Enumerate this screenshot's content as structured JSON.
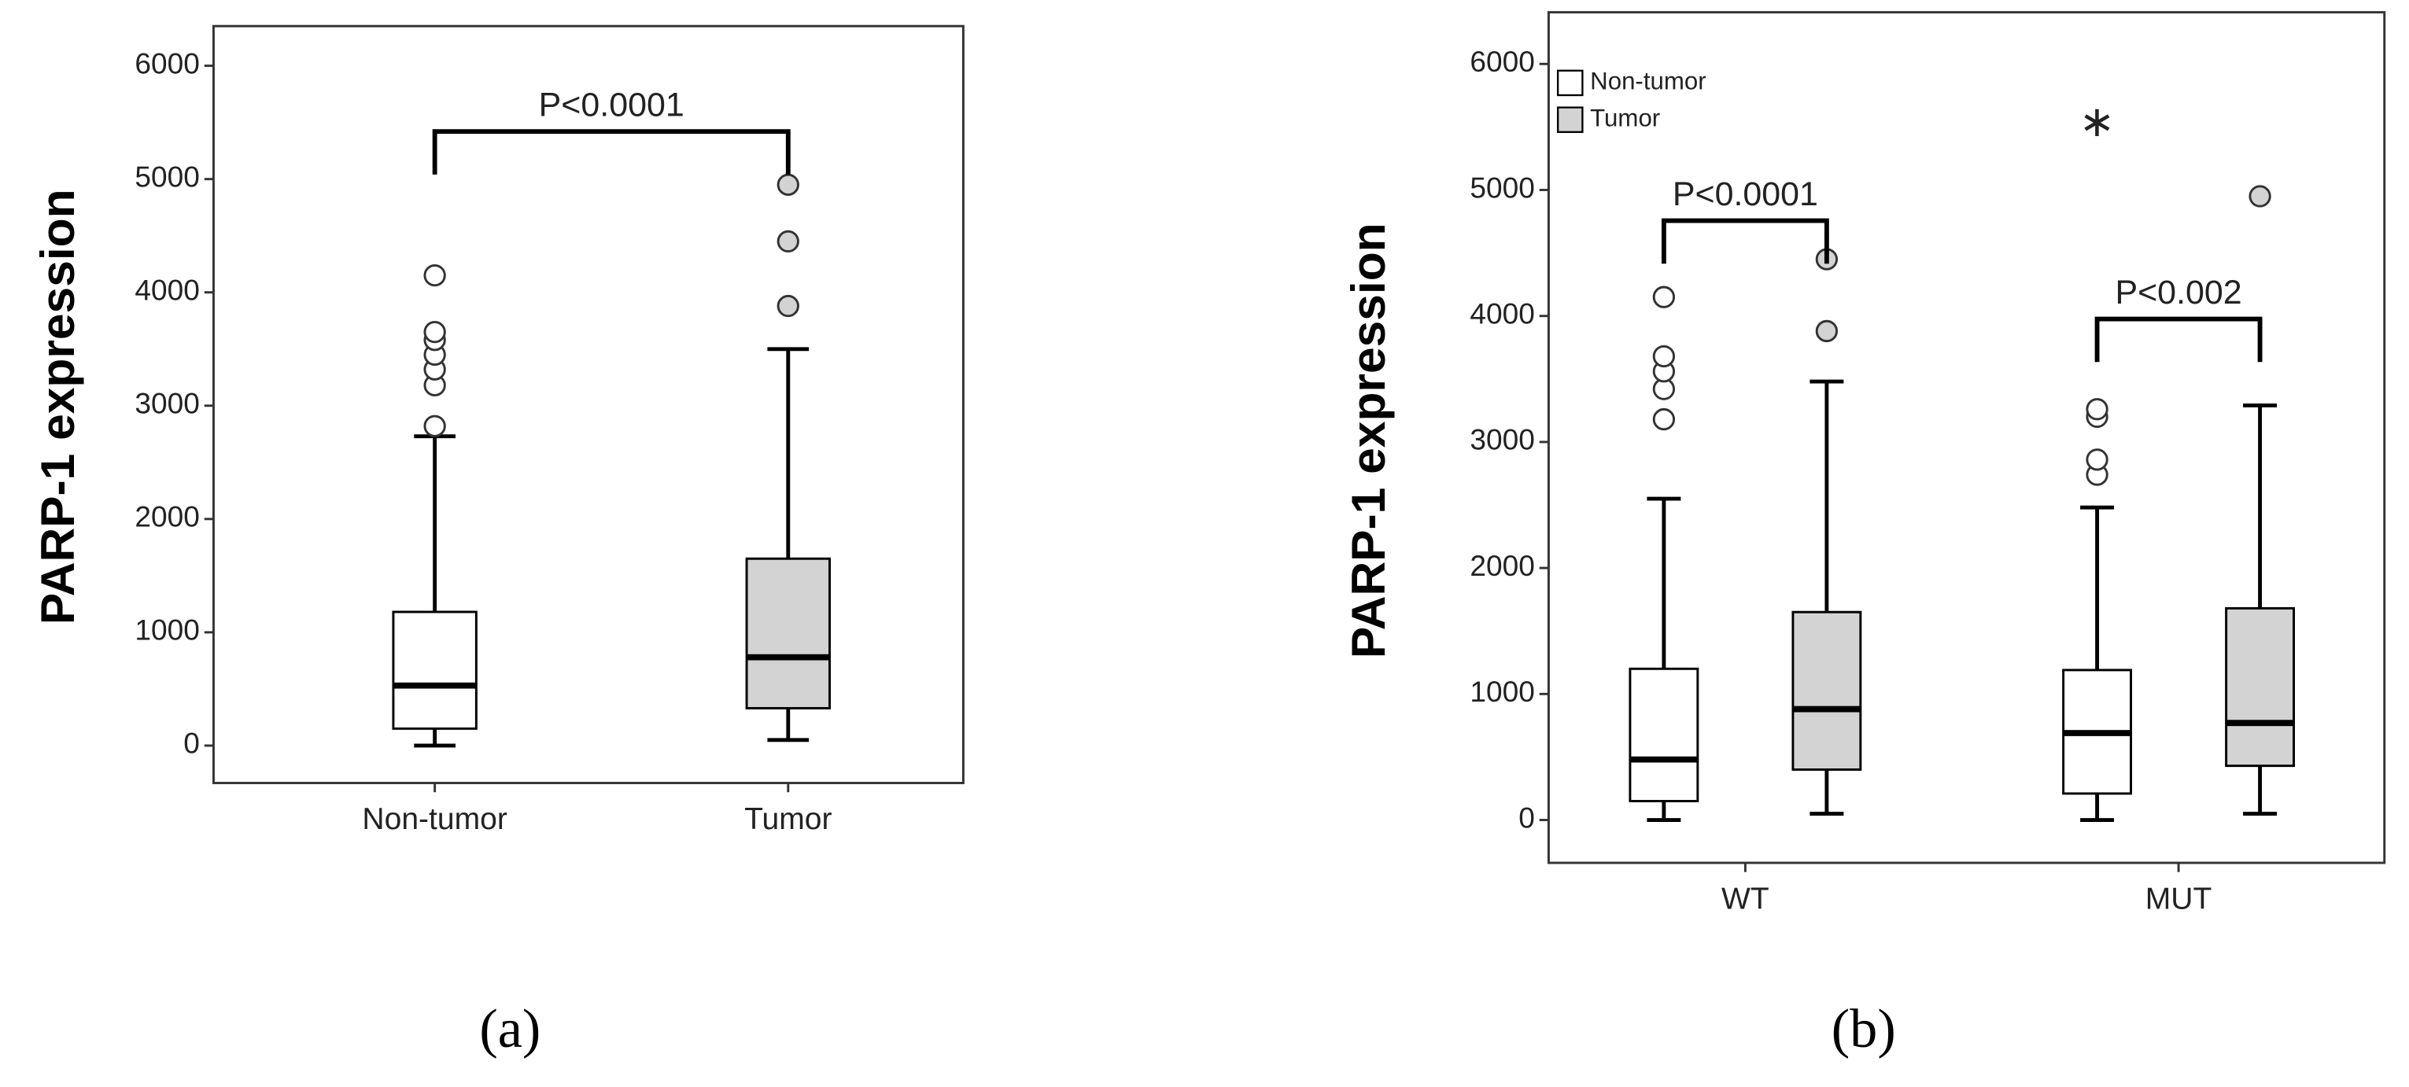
{
  "chart_data": [
    {
      "type": "box",
      "panel_label": "(a)",
      "y_label": "PARP-1 expression",
      "categories": [
        "Non-tumor",
        "Tumor"
      ],
      "colors": [
        "#ffffff",
        "#d3d3d3"
      ],
      "boxes": [
        {
          "min": 0,
          "q1": 150,
          "median": 530,
          "q3": 1180,
          "max": 2730,
          "outliers": [
            2820,
            3180,
            3320,
            3450,
            3580,
            3650,
            4150
          ]
        },
        {
          "min": 50,
          "q1": 330,
          "median": 780,
          "q3": 1650,
          "max": 3500,
          "outliers": [
            3880,
            4450,
            4950
          ]
        }
      ],
      "annotation": {
        "text": "P<0.0001",
        "y": 5420
      },
      "ylim": [
        -330,
        6350
      ],
      "yticks": [
        0,
        1000,
        2000,
        3000,
        4000,
        5000,
        6000
      ]
    },
    {
      "type": "grouped_box",
      "panel_label": "(b)",
      "y_label": "PARP-1 expression",
      "categories": [
        "WT",
        "MUT"
      ],
      "series": [
        {
          "name": "Non-tumor",
          "color": "#ffffff",
          "boxes": [
            {
              "min": 0,
              "q1": 150,
              "median": 480,
              "q3": 1200,
              "max": 2550,
              "outliers": [
                3180,
                3420,
                3560,
                3680,
                4150
              ]
            },
            {
              "min": 0,
              "q1": 210,
              "median": 690,
              "q3": 1190,
              "max": 2480,
              "outliers": [
                2740,
                2860,
                3200,
                3260
              ],
              "extremes": [
                5550
              ]
            }
          ]
        },
        {
          "name": "Tumor",
          "color": "#d3d3d3",
          "boxes": [
            {
              "min": 50,
              "q1": 400,
              "median": 880,
              "q3": 1650,
              "max": 3480,
              "outliers": [
                3880,
                4450
              ]
            },
            {
              "min": 50,
              "q1": 430,
              "median": 770,
              "q3": 1680,
              "max": 3290,
              "outliers": [
                4950
              ]
            }
          ]
        }
      ],
      "annotations": [
        {
          "text": "P<0.0001",
          "y": 4756
        },
        {
          "text": "P<0.002",
          "y": 3976
        }
      ],
      "legend": "top-left",
      "ylim": [
        -340,
        6410
      ],
      "yticks": [
        0,
        1000,
        2000,
        3000,
        4000,
        5000,
        6000
      ]
    }
  ]
}
